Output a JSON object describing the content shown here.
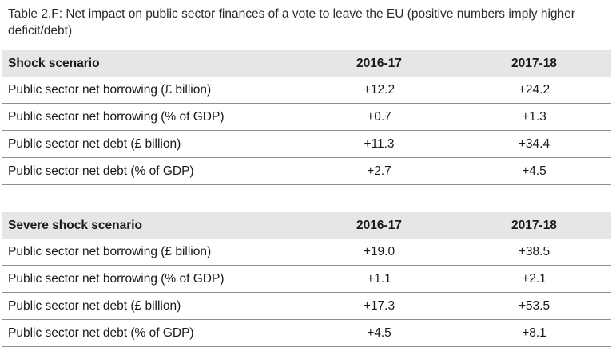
{
  "caption": "Table 2.F: Net impact on public sector finances of a vote to leave the EU (positive numbers imply higher deficit/debt)",
  "tables": [
    {
      "scenario": "Shock scenario",
      "columns": [
        "2016-17",
        "2017-18"
      ],
      "rows": [
        {
          "label": "Public sector net borrowing (£ billion)",
          "values": [
            "+12.2",
            "+24.2"
          ]
        },
        {
          "label": "Public sector net borrowing (% of GDP)",
          "values": [
            "+0.7",
            "+1.3"
          ]
        },
        {
          "label": "Public sector net debt (£ billion)",
          "values": [
            "+11.3",
            "+34.4"
          ]
        },
        {
          "label": "Public sector net debt (% of GDP)",
          "values": [
            "+2.7",
            "+4.5"
          ]
        }
      ]
    },
    {
      "scenario": "Severe shock scenario",
      "columns": [
        "2016-17",
        "2017-18"
      ],
      "rows": [
        {
          "label": "Public sector net borrowing (£ billion)",
          "values": [
            "+19.0",
            "+38.5"
          ]
        },
        {
          "label": "Public sector net borrowing (% of GDP)",
          "values": [
            "+1.1",
            "+2.1"
          ]
        },
        {
          "label": "Public sector net debt (£ billion)",
          "values": [
            "+17.3",
            "+53.5"
          ]
        },
        {
          "label": "Public sector net debt (% of GDP)",
          "values": [
            "+4.5",
            "+8.1"
          ]
        }
      ]
    }
  ]
}
